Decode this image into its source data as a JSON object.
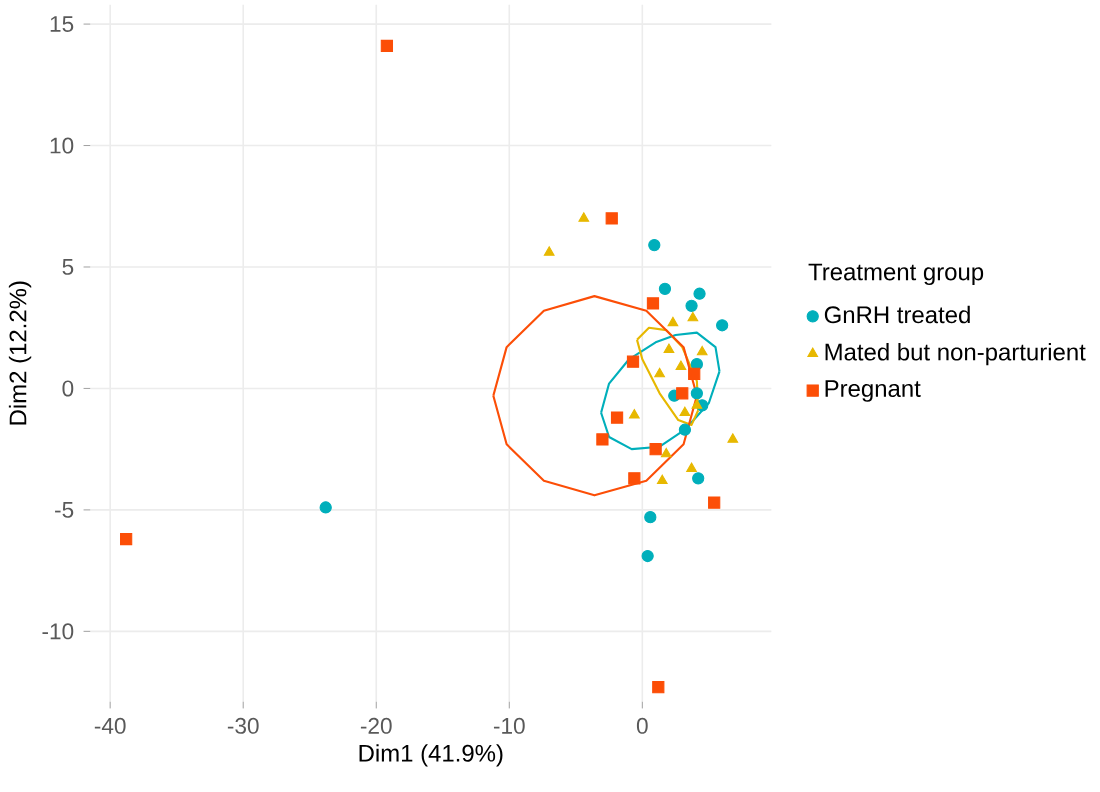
{
  "chart_data": {
    "type": "scatter",
    "xlabel": "Dim1 (41.9%)",
    "ylabel": "Dim2 (12.2%)",
    "legend_title": "Treatment group",
    "xlim": [
      -41.5,
      9.7
    ],
    "ylim": [
      -12.9,
      15.8
    ],
    "xticks": [
      -40,
      -30,
      -20,
      -10,
      0
    ],
    "yticks": [
      -10,
      -5,
      0,
      5,
      10,
      15
    ],
    "grid": true,
    "legend": "right",
    "series": [
      {
        "type": "line",
        "color": "#00afbb",
        "marker": "none",
        "x": [
          -3.1,
          -2.5,
          -1.0,
          1.0,
          2.5,
          4.1,
          5.5,
          5.8
        ],
        "values": [
          -1.0,
          0.2,
          1.2,
          1.9,
          2.2,
          2.3,
          1.7,
          0.7
        ]
      },
      {
        "type": "line",
        "color": "#00afbb",
        "marker": "none",
        "x": [
          -3.1,
          -2.5,
          -0.8,
          1.3,
          3.2,
          5.0,
          5.8
        ],
        "values": [
          -1.0,
          -2.0,
          -2.5,
          -2.4,
          -1.7,
          -0.6,
          0.7
        ]
      },
      {
        "type": "line",
        "color": "#e7b800",
        "marker": "none",
        "x": [
          -0.4,
          0.5,
          1.8,
          3.0,
          4.1,
          4.2
        ],
        "values": [
          2.0,
          2.5,
          2.4,
          1.7,
          0.3,
          -0.9
        ]
      },
      {
        "type": "line",
        "color": "#e7b800",
        "marker": "none",
        "x": [
          -0.4,
          0.0,
          1.3,
          2.7,
          3.7,
          4.2
        ],
        "values": [
          2.0,
          1.2,
          -0.2,
          -1.3,
          -1.5,
          -0.9
        ]
      },
      {
        "type": "line",
        "color": "#fc4e07",
        "marker": "none",
        "x": [
          -11.2,
          -10.2,
          -7.4,
          -3.6,
          0.3,
          3.1,
          4.1
        ],
        "values": [
          -0.3,
          1.7,
          3.2,
          3.8,
          3.2,
          1.7,
          -0.3
        ]
      },
      {
        "type": "line",
        "color": "#fc4e07",
        "marker": "none",
        "x": [
          -11.2,
          -10.2,
          -7.4,
          -3.6,
          0.3,
          3.1,
          4.1
        ],
        "values": [
          -0.3,
          -2.3,
          -3.8,
          -4.4,
          -3.8,
          -2.3,
          -0.3
        ]
      },
      {
        "name": "GnRH treated",
        "color": "#00afbb",
        "marker": "circle",
        "x": [
          0.9,
          1.7,
          4.3,
          3.7,
          6.0,
          4.1,
          2.4,
          4.1,
          4.5,
          3.2,
          4.2,
          0.6,
          0.4,
          -23.8
        ],
        "values": [
          5.9,
          4.1,
          3.9,
          3.4,
          2.6,
          1.0,
          -0.3,
          -0.2,
          -0.7,
          -1.7,
          -3.7,
          -5.3,
          -6.9,
          -4.9
        ]
      },
      {
        "name": "Mated but non-parturient",
        "color": "#e7b800",
        "marker": "triangle",
        "x": [
          -4.4,
          -7.0,
          2.3,
          3.8,
          2.0,
          1.3,
          2.9,
          4.5,
          4.1,
          3.2,
          -0.6,
          6.8,
          1.8,
          3.7,
          1.5
        ],
        "values": [
          7.0,
          5.6,
          2.7,
          2.9,
          1.6,
          0.6,
          0.9,
          1.5,
          -0.7,
          -1.0,
          -1.1,
          -2.1,
          -2.7,
          -3.3,
          -3.8
        ]
      },
      {
        "name": "Pregnant",
        "color": "#fc4e07",
        "marker": "square",
        "x": [
          -19.2,
          -38.8,
          -2.3,
          0.8,
          -0.7,
          3.9,
          3.0,
          -1.9,
          -3.0,
          1.0,
          -0.6,
          5.4,
          1.2
        ],
        "values": [
          14.1,
          -6.2,
          7.0,
          3.5,
          1.1,
          0.6,
          -0.2,
          -1.2,
          -2.1,
          -2.5,
          -3.7,
          -4.7,
          -12.3
        ]
      }
    ]
  }
}
